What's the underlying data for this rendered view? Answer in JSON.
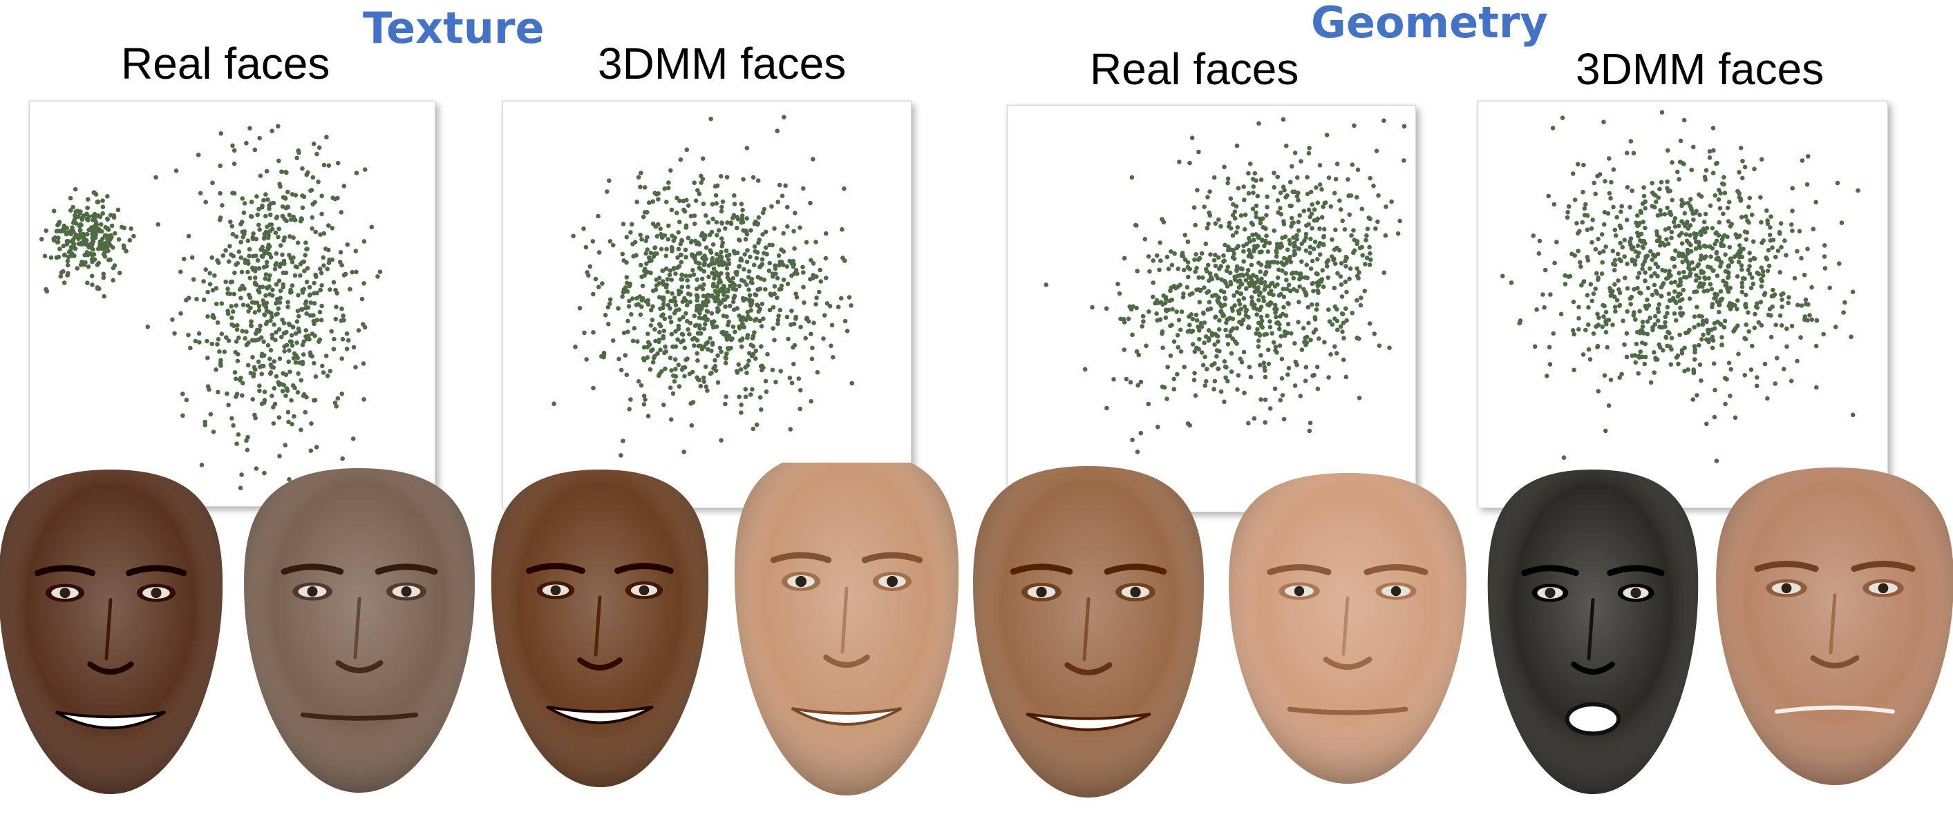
{
  "headings": {
    "texture": "Texture",
    "geometry": "Geometry"
  },
  "panel_titles": {
    "texture_real": "Real faces",
    "texture_3dmm": "3DMM faces",
    "geometry_real": "Real faces",
    "geometry_3dmm": "3DMM faces"
  },
  "colors": {
    "heading": "#4472c4",
    "points": "#4f6b45",
    "panel_border": "#d6d6d6"
  },
  "faces": [
    {
      "tone": "#5a3320",
      "expression": "smile-open",
      "group": "texture-real"
    },
    {
      "tone": "#7a6252",
      "expression": "neutral",
      "group": "texture-real"
    },
    {
      "tone": "#6b3f22",
      "expression": "smile-open",
      "group": "texture-3dmm"
    },
    {
      "tone": "#c99876",
      "expression": "smile-open",
      "group": "texture-3dmm"
    },
    {
      "tone": "#9a6a48",
      "expression": "smile-wide",
      "group": "geometry-real"
    },
    {
      "tone": "#d29f7f",
      "expression": "neutral",
      "group": "geometry-real"
    },
    {
      "tone": "#2c2a24",
      "expression": "surprised",
      "group": "geometry-3dmm"
    },
    {
      "tone": "#b98567",
      "expression": "sad",
      "group": "geometry-3dmm"
    }
  ],
  "chart_data": [
    {
      "type": "scatter",
      "title": "Real faces",
      "group": "Texture",
      "x_range": [
        -1,
        1
      ],
      "y_range": [
        -1,
        1
      ],
      "grid": false,
      "axes_visible": false,
      "point_count": 900,
      "distribution": "two clusters: a dense compact cluster at the left-centre and a larger, vertically elongated spread cloud to the right",
      "clusters": [
        {
          "center": [
            -0.72,
            0.32
          ],
          "spread": [
            0.1,
            0.09
          ],
          "share": 0.28
        },
        {
          "center": [
            0.22,
            0.05
          ],
          "spread": [
            0.2,
            0.37
          ],
          "share": 0.72
        }
      ]
    },
    {
      "type": "scatter",
      "title": "3DMM faces",
      "group": "Texture",
      "x_range": [
        -1,
        1
      ],
      "y_range": [
        -1,
        1
      ],
      "grid": false,
      "axes_visible": false,
      "point_count": 900,
      "distribution": "single roughly isotropic Gaussian cloud centred slightly right of the panel centre",
      "clusters": [
        {
          "center": [
            0.02,
            0.05
          ],
          "spread": [
            0.27,
            0.27
          ],
          "share": 1.0
        }
      ]
    },
    {
      "type": "scatter",
      "title": "Real faces",
      "group": "Geometry",
      "x_range": [
        -1,
        1
      ],
      "y_range": [
        -1,
        1
      ],
      "grid": false,
      "axes_visible": false,
      "point_count": 900,
      "distribution": "elongated cloud oriented from lower-left towards upper-right, denser on the right side",
      "clusters": [
        {
          "center": [
            0.22,
            0.12
          ],
          "spread": [
            0.36,
            0.26
          ],
          "share": 1.0,
          "tilt_degrees": 30
        }
      ]
    },
    {
      "type": "scatter",
      "title": "3DMM faces",
      "group": "Geometry",
      "x_range": [
        -1,
        1
      ],
      "y_range": [
        -1,
        1
      ],
      "grid": false,
      "axes_visible": false,
      "point_count": 900,
      "distribution": "single roughly isotropic Gaussian cloud centred in the panel",
      "clusters": [
        {
          "center": [
            0.02,
            0.15
          ],
          "spread": [
            0.33,
            0.29
          ],
          "share": 1.0
        }
      ]
    }
  ]
}
